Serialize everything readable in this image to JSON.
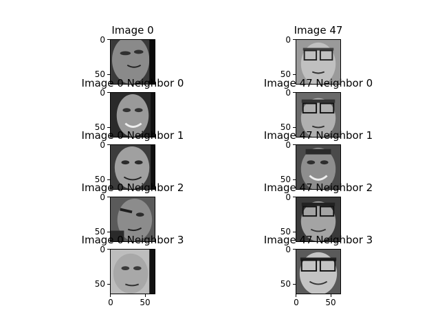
{
  "columns": [
    {
      "panels": [
        {
          "title": "Image 0",
          "kind": "query-face",
          "yticks": [
            "0",
            "50"
          ]
        },
        {
          "title": "Image 0 Neighbor 0",
          "kind": "neighbor-face",
          "yticks": [
            "0",
            "50"
          ]
        },
        {
          "title": "Image 0 Neighbor 1",
          "kind": "neighbor-face",
          "yticks": [
            "0",
            "50"
          ]
        },
        {
          "title": "Image 0 Neighbor 2",
          "kind": "neighbor-face",
          "yticks": [
            "0",
            "50"
          ]
        },
        {
          "title": "Image 0 Neighbor 3",
          "kind": "neighbor-face",
          "yticks": [
            "0",
            "50"
          ],
          "xticks": [
            "0",
            "50"
          ]
        }
      ]
    },
    {
      "panels": [
        {
          "title": "Image 47",
          "kind": "query-face",
          "yticks": [
            "0",
            "50"
          ]
        },
        {
          "title": "Image 47 Neighbor 0",
          "kind": "neighbor-face",
          "yticks": [
            "0",
            "50"
          ]
        },
        {
          "title": "Image 47 Neighbor 1",
          "kind": "neighbor-face",
          "yticks": [
            "0",
            "50"
          ]
        },
        {
          "title": "Image 47 Neighbor 2",
          "kind": "neighbor-face",
          "yticks": [
            "0",
            "50"
          ]
        },
        {
          "title": "Image 47 Neighbor 3",
          "kind": "neighbor-face",
          "yticks": [
            "0",
            "50"
          ],
          "xticks": [
            "0",
            "50"
          ]
        }
      ]
    }
  ]
}
